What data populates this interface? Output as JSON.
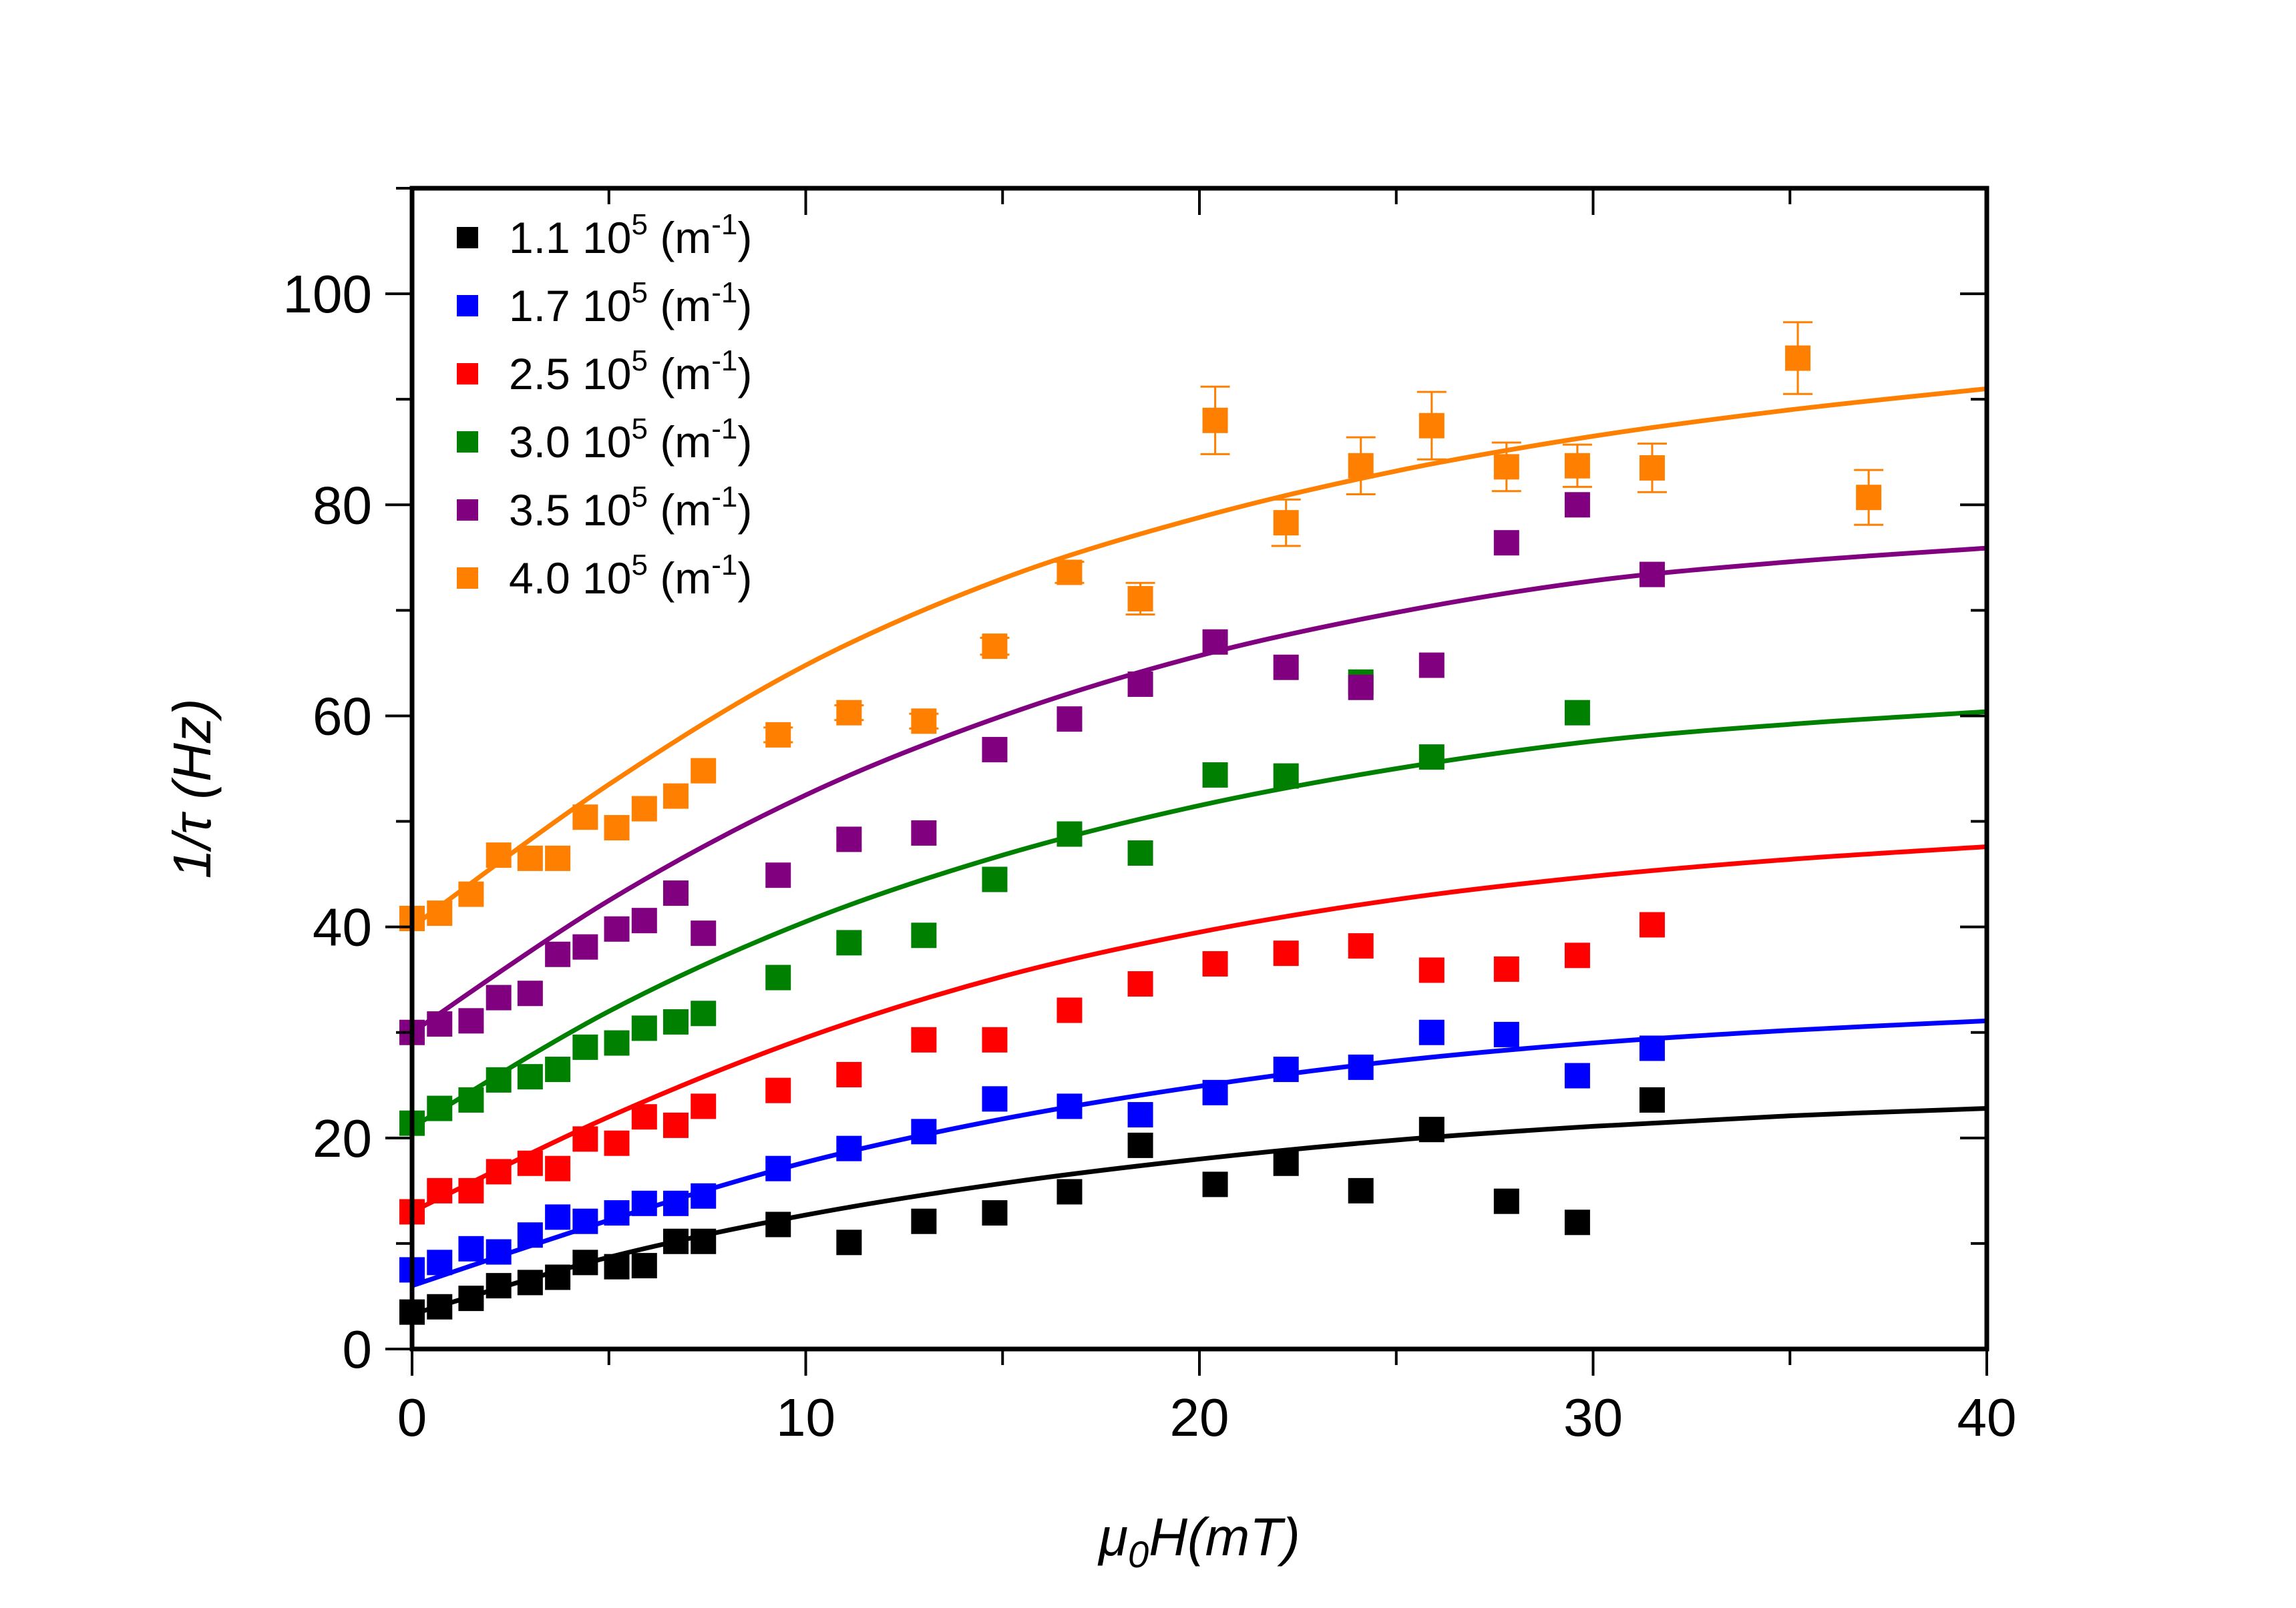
{
  "chart_data": {
    "type": "scatter",
    "title": "",
    "xlabel": "μ0H(mT)",
    "xlabel_parts": {
      "mu": "μ",
      "sub": "0",
      "rest": "H(mT)"
    },
    "ylabel": "1/τ (Hz)",
    "xlim": [
      0,
      40
    ],
    "ylim": [
      0,
      110
    ],
    "xticks": [
      0,
      10,
      20,
      30,
      40
    ],
    "xtick_labels": [
      "0",
      "10",
      "20",
      "30",
      "40"
    ],
    "yticks": [
      0,
      20,
      40,
      60,
      80,
      100
    ],
    "ytick_labels": [
      "0",
      "20",
      "40",
      "60",
      "80",
      "100"
    ],
    "x_minor_step": 5,
    "y_minor_step": 10,
    "grid": false,
    "legend_position": "top-left",
    "series": [
      {
        "name": "1.1 10^5 (m^-1)",
        "label": {
          "value": "1.1 10",
          "exp": "5",
          "unit_open": " (m",
          "unit_exp": "-1",
          "unit_close": ")"
        },
        "color": "#000000",
        "x": [
          0,
          0.7,
          1.5,
          2.2,
          3.0,
          3.7,
          4.4,
          5.2,
          5.9,
          6.7,
          7.4,
          9.3,
          11.1,
          13.0,
          14.8,
          16.7,
          18.5,
          20.4,
          22.2,
          24.1,
          25.9,
          27.8,
          29.6,
          31.5
        ],
        "y": [
          3.5,
          4.0,
          4.8,
          6.0,
          6.3,
          6.8,
          8.2,
          7.8,
          7.9,
          10.2,
          10.2,
          11.8,
          10.1,
          12.1,
          12.9,
          14.9,
          19.3,
          15.6,
          17.6,
          15.0,
          20.8,
          14.0,
          12.0,
          23.6
        ],
        "fit": [
          [
            0,
            3.3
          ],
          [
            5,
            8.7
          ],
          [
            10,
            12.7
          ],
          [
            15,
            15.7
          ],
          [
            20,
            18.0
          ],
          [
            25,
            19.8
          ],
          [
            30,
            21.1
          ],
          [
            35,
            22.1
          ],
          [
            40,
            22.8
          ]
        ]
      },
      {
        "name": "1.7 10^5 (m^-1)",
        "label": {
          "value": "1.7 10",
          "exp": "5",
          "unit_open": " (m",
          "unit_exp": "-1",
          "unit_close": ")"
        },
        "color": "#0000FF",
        "x": [
          0,
          0.7,
          1.5,
          2.2,
          3.0,
          3.7,
          4.4,
          5.2,
          5.9,
          6.7,
          7.4,
          9.3,
          11.1,
          13.0,
          14.8,
          16.7,
          18.5,
          20.4,
          22.2,
          24.1,
          25.9,
          27.8,
          29.6,
          31.5
        ],
        "y": [
          7.5,
          8.2,
          9.5,
          9.2,
          10.8,
          12.5,
          12.1,
          12.9,
          13.8,
          13.8,
          14.5,
          17.1,
          19.0,
          20.6,
          23.7,
          23.0,
          22.2,
          24.3,
          26.5,
          26.7,
          30.0,
          29.8,
          25.9,
          28.5
        ],
        "fit": [
          [
            0,
            6.0
          ],
          [
            5,
            12.2
          ],
          [
            10,
            17.7
          ],
          [
            15,
            21.8
          ],
          [
            20,
            24.9
          ],
          [
            25,
            27.3
          ],
          [
            30,
            29.0
          ],
          [
            35,
            30.2
          ],
          [
            40,
            31.1
          ]
        ]
      },
      {
        "name": "2.5 10^5 (m^-1)",
        "label": {
          "value": "2.5 10",
          "exp": "5",
          "unit_open": " (m",
          "unit_exp": "-1",
          "unit_close": ")"
        },
        "color": "#FF0000",
        "x": [
          0,
          0.7,
          1.5,
          2.2,
          3.0,
          3.7,
          4.4,
          5.2,
          5.9,
          6.7,
          7.4,
          9.3,
          11.1,
          13.0,
          14.8,
          16.7,
          18.5,
          20.4,
          22.2,
          24.1,
          25.9,
          27.8,
          29.6,
          31.5
        ],
        "y": [
          13.0,
          15.0,
          15.0,
          16.8,
          17.6,
          17.1,
          19.9,
          19.5,
          22.0,
          21.2,
          23.0,
          24.5,
          26.0,
          29.3,
          29.3,
          32.1,
          34.6,
          36.5,
          37.5,
          38.2,
          35.9,
          36.0,
          37.3,
          40.2
        ],
        "fit": [
          [
            0,
            13.0
          ],
          [
            5,
            22.0
          ],
          [
            10,
            29.5
          ],
          [
            15,
            35.3
          ],
          [
            20,
            39.5
          ],
          [
            25,
            42.6
          ],
          [
            30,
            44.8
          ],
          [
            35,
            46.4
          ],
          [
            40,
            47.6
          ]
        ]
      },
      {
        "name": "3.0 10^5 (m^-1)",
        "label": {
          "value": "3.0 10",
          "exp": "5",
          "unit_open": " (m",
          "unit_exp": "-1",
          "unit_close": ")"
        },
        "color": "#008000",
        "x": [
          0,
          0.7,
          1.5,
          2.2,
          3.0,
          3.7,
          4.4,
          5.2,
          5.9,
          6.7,
          7.4,
          9.3,
          11.1,
          13.0,
          14.8,
          16.7,
          18.5,
          20.4,
          22.2,
          24.1,
          25.9,
          27.8,
          29.6,
          31.5
        ],
        "y": [
          21.4,
          22.8,
          23.6,
          25.5,
          25.8,
          26.5,
          28.6,
          29.0,
          30.4,
          31.0,
          31.8,
          35.2,
          38.5,
          39.2,
          44.5,
          48.8,
          47.0,
          54.4,
          54.3,
          63.2,
          56.1,
          null,
          60.3,
          null
        ],
        "fit": [
          [
            0,
            21.0
          ],
          [
            5,
            32.0
          ],
          [
            10,
            40.5
          ],
          [
            15,
            46.8
          ],
          [
            20,
            51.5
          ],
          [
            25,
            55.0
          ],
          [
            30,
            57.6
          ],
          [
            35,
            59.2
          ],
          [
            40,
            60.4
          ]
        ]
      },
      {
        "name": "3.5 10^5 (m^-1)",
        "label": {
          "value": "3.5 10",
          "exp": "5",
          "unit_open": " (m",
          "unit_exp": "-1",
          "unit_close": ")"
        },
        "color": "#800080",
        "x": [
          0,
          0.7,
          1.5,
          2.2,
          3.0,
          3.7,
          4.4,
          5.2,
          5.9,
          6.7,
          7.4,
          9.3,
          11.1,
          13.0,
          14.8,
          16.7,
          18.5,
          20.4,
          22.2,
          24.1,
          25.9,
          27.8,
          29.6,
          31.5
        ],
        "y": [
          30.0,
          30.8,
          31.1,
          33.3,
          33.7,
          37.4,
          38.1,
          39.8,
          40.6,
          43.2,
          39.4,
          44.9,
          48.3,
          48.9,
          56.8,
          59.7,
          63.0,
          67.0,
          64.6,
          62.7,
          64.8,
          76.4,
          80.0,
          73.4
        ],
        "fit": [
          [
            0,
            30.0
          ],
          [
            5,
            42.5
          ],
          [
            10,
            52.5
          ],
          [
            15,
            60.0
          ],
          [
            20,
            65.7
          ],
          [
            25,
            69.8
          ],
          [
            30,
            72.8
          ],
          [
            35,
            74.6
          ],
          [
            40,
            75.9
          ]
        ]
      },
      {
        "name": "4.0 10^5 (m^-1)",
        "label": {
          "value": "4.0 10",
          "exp": "5",
          "unit_open": " (m",
          "unit_exp": "-1",
          "unit_close": ")"
        },
        "color": "#FF8000",
        "x": [
          0,
          0.7,
          1.5,
          2.2,
          3.0,
          3.7,
          4.4,
          5.2,
          5.9,
          6.7,
          7.4,
          9.3,
          11.1,
          13.0,
          14.8,
          16.7,
          18.5,
          20.4,
          22.2,
          24.1,
          25.9,
          27.8,
          29.6,
          31.5,
          35.2,
          37.0
        ],
        "y": [
          40.8,
          41.3,
          43.1,
          46.8,
          46.5,
          46.5,
          50.4,
          49.4,
          51.2,
          52.4,
          54.8,
          58.2,
          60.3,
          59.5,
          66.6,
          73.6,
          71.1,
          88.0,
          78.3,
          83.7,
          87.5,
          83.6,
          83.7,
          83.5,
          93.9,
          80.7
        ],
        "errors": [
          0.5,
          0.5,
          0.5,
          0.5,
          0.5,
          0.5,
          0.5,
          0.5,
          0.5,
          0.5,
          0.5,
          0.7,
          0.7,
          0.7,
          0.8,
          1.0,
          1.5,
          3.2,
          2.2,
          2.7,
          3.2,
          2.3,
          2.0,
          2.3,
          3.4,
          2.6
        ],
        "fit": [
          [
            0,
            40.0
          ],
          [
            5,
            53.5
          ],
          [
            10,
            64.8
          ],
          [
            15,
            73.0
          ],
          [
            20,
            78.8
          ],
          [
            25,
            83.2
          ],
          [
            30,
            86.5
          ],
          [
            35,
            89.0
          ],
          [
            40,
            91.0
          ]
        ]
      }
    ]
  }
}
